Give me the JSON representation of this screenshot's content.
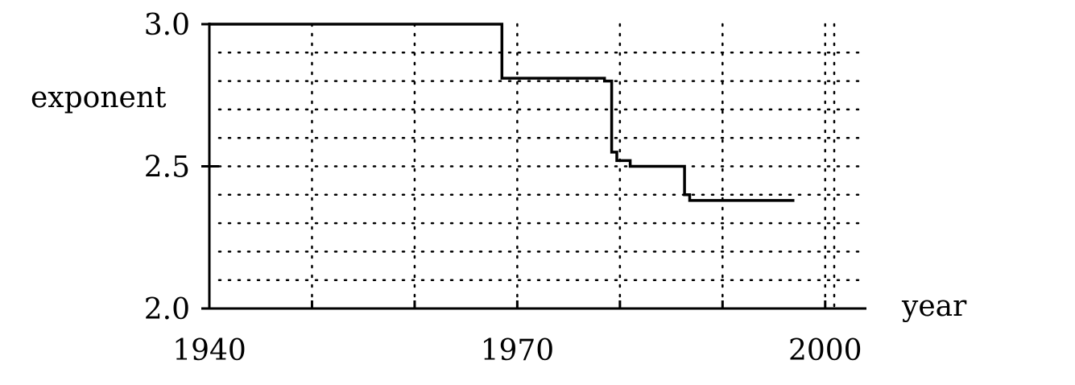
{
  "chart_data": {
    "type": "line",
    "style": "step",
    "title": "",
    "xlabel": "year",
    "ylabel": "exponent",
    "xlim": [
      1940,
      2003
    ],
    "ylim": [
      2.0,
      3.0
    ],
    "x_ticks": [
      1940,
      1970,
      2000
    ],
    "y_ticks": [
      2.0,
      2.5,
      3.0
    ],
    "x_tick_labels": [
      "1940",
      "1970",
      "2000"
    ],
    "y_tick_labels": [
      "2.0",
      "2.5",
      "3.0"
    ],
    "x_grid_step": 10,
    "y_grid_step": 0.1,
    "grid": "dotted",
    "line_color": "#000000",
    "series": [
      {
        "x": [
          1940,
          1968.5,
          1968.5,
          1978.5,
          1978.5,
          1979.2,
          1979.2,
          1979.7,
          1979.7,
          1981,
          1981,
          1986.3,
          1986.3,
          1986.8,
          1986.8,
          1997
        ],
        "y": [
          3.0,
          3.0,
          2.81,
          2.81,
          2.8,
          2.8,
          2.55,
          2.55,
          2.52,
          2.52,
          2.5,
          2.5,
          2.4,
          2.4,
          2.38,
          2.38
        ]
      }
    ]
  }
}
